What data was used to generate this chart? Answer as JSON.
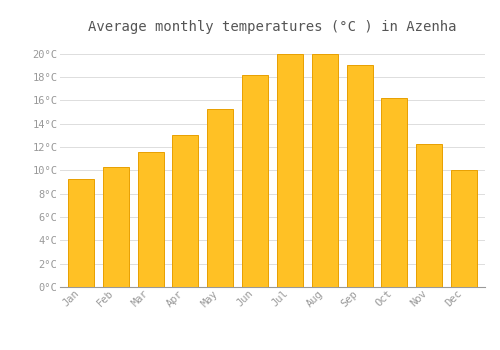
{
  "title": "Average monthly temperatures (°C ) in Azenha",
  "months": [
    "Jan",
    "Feb",
    "Mar",
    "Apr",
    "May",
    "Jun",
    "Jul",
    "Aug",
    "Sep",
    "Oct",
    "Nov",
    "Dec"
  ],
  "values": [
    9.3,
    10.3,
    11.6,
    13.0,
    15.3,
    18.2,
    20.0,
    20.0,
    19.0,
    16.2,
    12.3,
    10.0
  ],
  "bar_color": "#FFC125",
  "bar_edge_color": "#E8A000",
  "background_color": "#FFFFFF",
  "plot_bg_color": "#FFFFFF",
  "grid_color": "#DDDDDD",
  "ytick_labels": [
    "0°C",
    "2°C",
    "4°C",
    "6°C",
    "8°C",
    "10°C",
    "12°C",
    "14°C",
    "16°C",
    "18°C",
    "20°C"
  ],
  "ytick_values": [
    0,
    2,
    4,
    6,
    8,
    10,
    12,
    14,
    16,
    18,
    20
  ],
  "ylim": [
    0,
    21
  ],
  "title_fontsize": 10,
  "tick_fontsize": 7.5,
  "tick_color": "#999999",
  "title_color": "#555555",
  "bar_width": 0.75
}
